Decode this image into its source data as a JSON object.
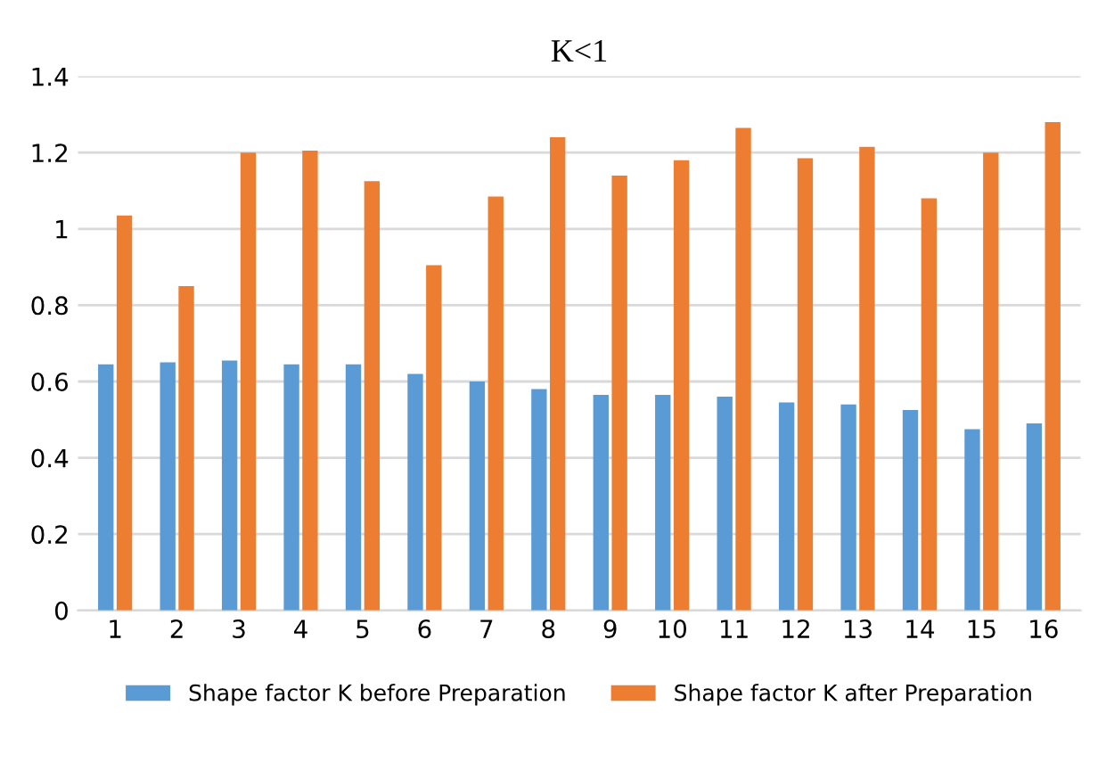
{
  "chart_data": {
    "type": "bar",
    "title": "K<1",
    "categories": [
      "1",
      "2",
      "3",
      "4",
      "5",
      "6",
      "7",
      "8",
      "9",
      "10",
      "11",
      "12",
      "13",
      "14",
      "15",
      "16"
    ],
    "series": [
      {
        "name": "Shape factor K before Preparation",
        "color": "#5b9bd5",
        "values": [
          0.645,
          0.65,
          0.655,
          0.645,
          0.645,
          0.62,
          0.6,
          0.58,
          0.565,
          0.565,
          0.56,
          0.545,
          0.54,
          0.525,
          0.475,
          0.49
        ]
      },
      {
        "name": "Shape factor K after Preparation",
        "color": "#ed7d31",
        "values": [
          1.035,
          0.85,
          1.2,
          1.205,
          1.125,
          0.905,
          1.085,
          1.24,
          1.14,
          1.18,
          1.265,
          1.185,
          1.215,
          1.08,
          1.2,
          1.28
        ]
      }
    ],
    "ylim": [
      0,
      1.4
    ],
    "yticks": [
      0,
      0.2,
      0.4,
      0.6,
      0.8,
      1,
      1.2,
      1.4
    ],
    "grid": "y",
    "legend": "bottom"
  }
}
